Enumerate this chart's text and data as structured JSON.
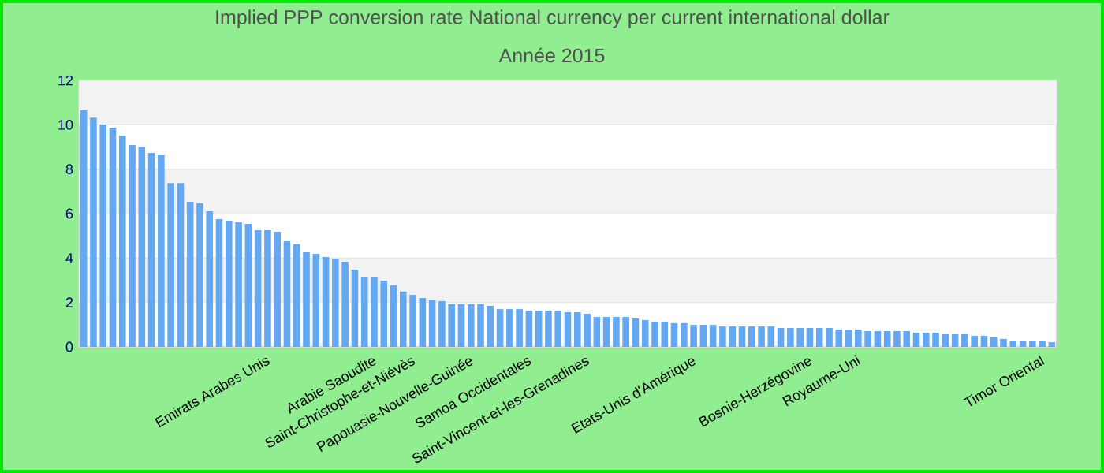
{
  "chart_data": {
    "type": "bar",
    "title": "Implied PPP conversion rate  National currency per current international dollar",
    "subtitle": "Année 2015",
    "categories": [
      null,
      null,
      null,
      null,
      null,
      null,
      null,
      null,
      null,
      null,
      null,
      null,
      null,
      null,
      null,
      null,
      null,
      null,
      null,
      "Emirats Arabes Unis",
      null,
      null,
      null,
      null,
      null,
      null,
      null,
      null,
      null,
      null,
      "Arabie Saoudite",
      null,
      null,
      null,
      "Saint-Christophe-et-Niévès",
      null,
      null,
      null,
      null,
      null,
      "Papouasie-Nouvelle-Guinée",
      null,
      null,
      null,
      null,
      null,
      "Samoa Occidentales",
      null,
      null,
      null,
      null,
      null,
      "Saint-Vincent-et-les-Grenadines",
      null,
      null,
      null,
      null,
      null,
      null,
      null,
      null,
      null,
      null,
      "Etats-Unis d'Amérique",
      null,
      null,
      null,
      null,
      null,
      null,
      null,
      null,
      null,
      null,
      null,
      "Bosnie-Herzégovine",
      null,
      null,
      null,
      null,
      "Royaume-Uni",
      null,
      null,
      null,
      null,
      null,
      null,
      null,
      null,
      null,
      null,
      null,
      null,
      null,
      null,
      null,
      null,
      null,
      null,
      "Timor Oriental",
      null
    ],
    "values": [
      10.65,
      10.32,
      10.01,
      9.87,
      9.51,
      9.09,
      9.02,
      8.73,
      8.66,
      7.38,
      7.38,
      6.53,
      6.46,
      6.11,
      5.75,
      5.68,
      5.61,
      5.54,
      5.25,
      5.25,
      5.18,
      4.76,
      4.62,
      4.26,
      4.19,
      4.05,
      3.98,
      3.83,
      3.48,
      3.12,
      3.12,
      2.98,
      2.77,
      2.49,
      2.34,
      2.2,
      2.13,
      2.06,
      1.92,
      1.92,
      1.92,
      1.92,
      1.85,
      1.7,
      1.7,
      1.7,
      1.63,
      1.63,
      1.63,
      1.63,
      1.56,
      1.56,
      1.49,
      1.35,
      1.35,
      1.35,
      1.35,
      1.28,
      1.21,
      1.14,
      1.14,
      1.07,
      1.07,
      0.99,
      0.99,
      0.99,
      0.92,
      0.92,
      0.92,
      0.92,
      0.92,
      0.92,
      0.85,
      0.85,
      0.85,
      0.85,
      0.85,
      0.85,
      0.78,
      0.78,
      0.78,
      0.71,
      0.71,
      0.71,
      0.71,
      0.71,
      0.64,
      0.64,
      0.64,
      0.57,
      0.57,
      0.57,
      0.5,
      0.5,
      0.43,
      0.36,
      0.28,
      0.28,
      0.28,
      0.28,
      0.21
    ],
    "color": "#63a8f0",
    "ylim": [
      0,
      12
    ],
    "yticks": [
      0,
      2,
      4,
      6,
      8,
      10,
      12
    ],
    "grid": "y"
  }
}
